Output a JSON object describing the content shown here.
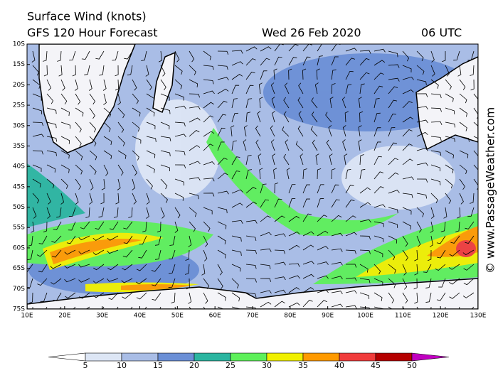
{
  "header": {
    "title": "Surface Wind (knots)",
    "subtitle": "GFS 120 Hour Forecast",
    "date": "Wed 26 Feb 2020",
    "time": "06 UTC"
  },
  "map": {
    "lat_labels": [
      "10S",
      "15S",
      "20S",
      "25S",
      "30S",
      "35S",
      "40S",
      "45S",
      "50S",
      "55S",
      "60S",
      "65S",
      "70S",
      "75S"
    ],
    "lon_labels": [
      "10E",
      "20E",
      "30E",
      "40E",
      "50E",
      "60E",
      "70E",
      "80E",
      "90E",
      "100E",
      "110E",
      "120E",
      "130E"
    ]
  },
  "colorbar": {
    "ticks": [
      5,
      10,
      15,
      20,
      25,
      30,
      35,
      40,
      45,
      50
    ],
    "colors": [
      "#ffffff",
      "#dde6f5",
      "#a9bde6",
      "#6b8fd6",
      "#2bb5a0",
      "#5ef05a",
      "#f0f000",
      "#ff9a00",
      "#f03c3c",
      "#b40000",
      "#c000c0"
    ]
  },
  "watermark": "© www.PassageWeather.com"
}
